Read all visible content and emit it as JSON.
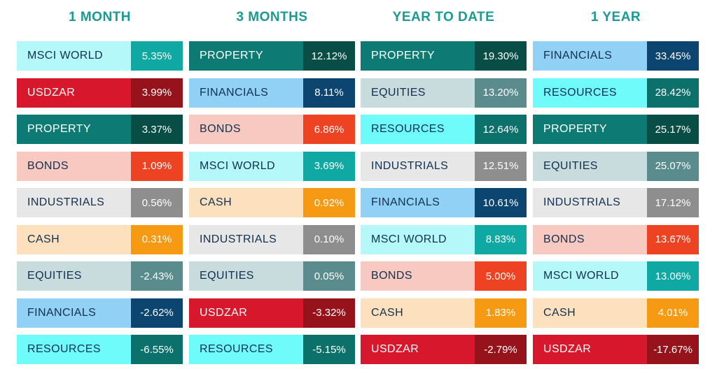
{
  "colors": {
    "title": "#1a9a93",
    "MSCI WORLD": {
      "cat_bg": "#b4f8f9",
      "val_bg": "#0fa8a2",
      "cat_fg": "#12304f",
      "val_fg": "#ffffff"
    },
    "USDZAR": {
      "cat_bg": "#d7172b",
      "val_bg": "#97131c",
      "cat_fg": "#ffffff",
      "val_fg": "#ffffff"
    },
    "PROPERTY": {
      "cat_bg": "#0d7b73",
      "val_bg": "#094d47",
      "cat_fg": "#ffffff",
      "val_fg": "#ffffff"
    },
    "BONDS": {
      "cat_bg": "#f8c9c1",
      "val_bg": "#ee4323",
      "cat_fg": "#12304f",
      "val_fg": "#ffffff"
    },
    "INDUSTRIALS": {
      "cat_bg": "#e7e7e7",
      "val_bg": "#8e8e8e",
      "cat_fg": "#12304f",
      "val_fg": "#ffffff"
    },
    "CASH": {
      "cat_bg": "#fde0be",
      "val_bg": "#f59a12",
      "cat_fg": "#12304f",
      "val_fg": "#ffffff"
    },
    "EQUITIES": {
      "cat_bg": "#c8dcde",
      "val_bg": "#5a8b8d",
      "cat_fg": "#12304f",
      "val_fg": "#ffffff"
    },
    "FINANCIALS": {
      "cat_bg": "#91d1f6",
      "val_bg": "#0c4570",
      "cat_fg": "#12304f",
      "val_fg": "#ffffff"
    },
    "RESOURCES": {
      "cat_bg": "#70fbfb",
      "val_bg": "#0c706b",
      "cat_fg": "#12304f",
      "val_fg": "#ffffff"
    }
  },
  "chart_data": {
    "type": "table",
    "columns": [
      {
        "title": "1 MONTH",
        "rows": [
          {
            "category": "MSCI WORLD",
            "value": "5.35%"
          },
          {
            "category": "USDZAR",
            "value": "3.99%"
          },
          {
            "category": "PROPERTY",
            "value": "3.37%"
          },
          {
            "category": "BONDS",
            "value": "1.09%"
          },
          {
            "category": "INDUSTRIALS",
            "value": "0.56%"
          },
          {
            "category": "CASH",
            "value": "0.31%"
          },
          {
            "category": "EQUITIES",
            "value": "-2.43%"
          },
          {
            "category": "FINANCIALS",
            "value": "-2.62%"
          },
          {
            "category": "RESOURCES",
            "value": "-6.55%"
          }
        ]
      },
      {
        "title": "3 MONTHS",
        "rows": [
          {
            "category": "PROPERTY",
            "value": "12.12%"
          },
          {
            "category": "FINANCIALS",
            "value": "8.11%"
          },
          {
            "category": "BONDS",
            "value": "6.86%"
          },
          {
            "category": "MSCI WORLD",
            "value": "3.69%"
          },
          {
            "category": "CASH",
            "value": "0.92%"
          },
          {
            "category": "INDUSTRIALS",
            "value": "0.10%"
          },
          {
            "category": "EQUITIES",
            "value": "0.05%"
          },
          {
            "category": "USDZAR",
            "value": "-3.32%"
          },
          {
            "category": "RESOURCES",
            "value": "-5.15%"
          }
        ]
      },
      {
        "title": "YEAR TO DATE",
        "rows": [
          {
            "category": "PROPERTY",
            "value": "19.30%"
          },
          {
            "category": "EQUITIES",
            "value": "13.20%"
          },
          {
            "category": "RESOURCES",
            "value": "12.64%"
          },
          {
            "category": "INDUSTRIALS",
            "value": "12.51%"
          },
          {
            "category": "FINANCIALS",
            "value": "10.61%"
          },
          {
            "category": "MSCI WORLD",
            "value": "8.83%"
          },
          {
            "category": "BONDS",
            "value": "5.00%"
          },
          {
            "category": "CASH",
            "value": "1.83%"
          },
          {
            "category": "USDZAR",
            "value": "-2.79%"
          }
        ]
      },
      {
        "title": "1 YEAR",
        "rows": [
          {
            "category": "FINANCIALS",
            "value": "33.45%"
          },
          {
            "category": "RESOURCES",
            "value": "28.42%"
          },
          {
            "category": "PROPERTY",
            "value": "25.17%"
          },
          {
            "category": "EQUITIES",
            "value": "25.07%"
          },
          {
            "category": "INDUSTRIALS",
            "value": "17.12%"
          },
          {
            "category": "BONDS",
            "value": "13.67%"
          },
          {
            "category": "MSCI WORLD",
            "value": "13.06%"
          },
          {
            "category": "CASH",
            "value": "4.01%"
          },
          {
            "category": "USDZAR",
            "value": "-17.67%"
          }
        ]
      }
    ]
  }
}
